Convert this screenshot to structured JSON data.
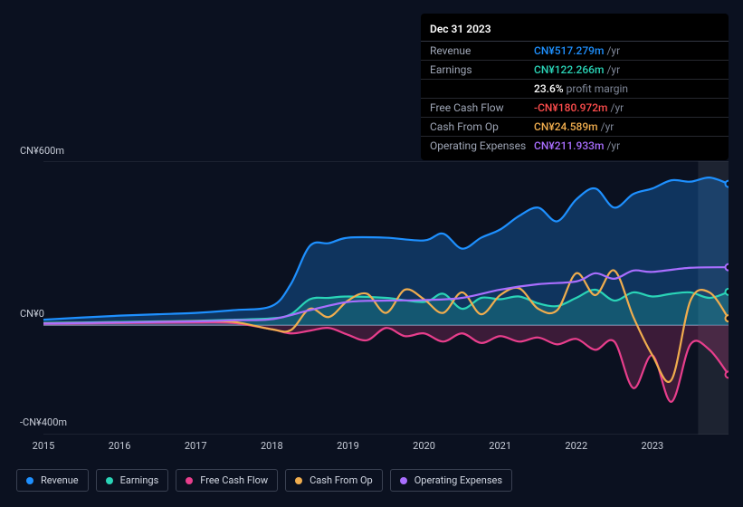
{
  "chart": {
    "type": "line-area",
    "background_color": "#0b1120",
    "grid_color": "#2d3442",
    "zero_line_color": "#6a7184",
    "forecast_band_color": "#3e4554",
    "xlim": [
      2015,
      2024
    ],
    "ylim": [
      -400,
      600
    ],
    "ylabels": [
      {
        "v": 600,
        "text": "CN¥600m"
      },
      {
        "v": 0,
        "text": "CN¥0"
      },
      {
        "v": -400,
        "text": "-CN¥400m"
      }
    ],
    "xticks": [
      2015,
      2016,
      2017,
      2018,
      2019,
      2020,
      2021,
      2022,
      2023
    ],
    "forecast_start": 2023.6,
    "series": [
      {
        "key": "revenue",
        "label": "Revenue",
        "color": "#1e90ff",
        "fill_opacity": 0.28,
        "values": [
          [
            2015,
            20
          ],
          [
            2015.5,
            28
          ],
          [
            2016,
            35
          ],
          [
            2016.5,
            40
          ],
          [
            2017,
            45
          ],
          [
            2017.5,
            55
          ],
          [
            2018,
            70
          ],
          [
            2018.25,
            150
          ],
          [
            2018.5,
            290
          ],
          [
            2018.75,
            300
          ],
          [
            2019,
            320
          ],
          [
            2019.5,
            320
          ],
          [
            2020,
            310
          ],
          [
            2020.25,
            335
          ],
          [
            2020.5,
            280
          ],
          [
            2020.75,
            320
          ],
          [
            2021,
            350
          ],
          [
            2021.25,
            400
          ],
          [
            2021.5,
            430
          ],
          [
            2021.75,
            380
          ],
          [
            2022,
            460
          ],
          [
            2022.25,
            500
          ],
          [
            2022.5,
            430
          ],
          [
            2022.75,
            480
          ],
          [
            2023,
            500
          ],
          [
            2023.25,
            530
          ],
          [
            2023.5,
            525
          ],
          [
            2023.75,
            540
          ],
          [
            2024,
            517
          ]
        ]
      },
      {
        "key": "earnings",
        "label": "Earnings",
        "color": "#2ad4b7",
        "fill_opacity": 0.22,
        "values": [
          [
            2015,
            8
          ],
          [
            2015.5,
            10
          ],
          [
            2016,
            12
          ],
          [
            2016.5,
            14
          ],
          [
            2017,
            16
          ],
          [
            2017.5,
            20
          ],
          [
            2018,
            25
          ],
          [
            2018.25,
            40
          ],
          [
            2018.5,
            95
          ],
          [
            2018.75,
            100
          ],
          [
            2019,
            105
          ],
          [
            2019.5,
            100
          ],
          [
            2020,
            85
          ],
          [
            2020.25,
            115
          ],
          [
            2020.5,
            60
          ],
          [
            2020.75,
            100
          ],
          [
            2021,
            95
          ],
          [
            2021.25,
            105
          ],
          [
            2021.5,
            80
          ],
          [
            2021.75,
            70
          ],
          [
            2022,
            100
          ],
          [
            2022.25,
            130
          ],
          [
            2022.5,
            90
          ],
          [
            2022.75,
            120
          ],
          [
            2023,
            105
          ],
          [
            2023.25,
            115
          ],
          [
            2023.5,
            120
          ],
          [
            2023.75,
            100
          ],
          [
            2024,
            122
          ]
        ]
      },
      {
        "key": "fcf",
        "label": "Free Cash Flow",
        "color": "#e83e8c",
        "fill_opacity": 0.22,
        "values": [
          [
            2015,
            5
          ],
          [
            2016,
            8
          ],
          [
            2017,
            10
          ],
          [
            2017.5,
            8
          ],
          [
            2018,
            -15
          ],
          [
            2018.25,
            -30
          ],
          [
            2018.5,
            -20
          ],
          [
            2018.75,
            -10
          ],
          [
            2019,
            -35
          ],
          [
            2019.25,
            -55
          ],
          [
            2019.5,
            -10
          ],
          [
            2019.75,
            -40
          ],
          [
            2020,
            -30
          ],
          [
            2020.25,
            -60
          ],
          [
            2020.5,
            -30
          ],
          [
            2020.75,
            -65
          ],
          [
            2021,
            -40
          ],
          [
            2021.25,
            -60
          ],
          [
            2021.5,
            -45
          ],
          [
            2021.75,
            -70
          ],
          [
            2022,
            -50
          ],
          [
            2022.25,
            -90
          ],
          [
            2022.5,
            -60
          ],
          [
            2022.75,
            -230
          ],
          [
            2023,
            -110
          ],
          [
            2023.25,
            -280
          ],
          [
            2023.5,
            -70
          ],
          [
            2023.75,
            -90
          ],
          [
            2024,
            -181
          ]
        ]
      },
      {
        "key": "cfo",
        "label": "Cash From Op",
        "color": "#f0ad4e",
        "fill_opacity": 0.0,
        "values": [
          [
            2015,
            7
          ],
          [
            2016,
            10
          ],
          [
            2017,
            15
          ],
          [
            2017.5,
            12
          ],
          [
            2018,
            -15
          ],
          [
            2018.25,
            -18
          ],
          [
            2018.5,
            60
          ],
          [
            2018.75,
            30
          ],
          [
            2019,
            90
          ],
          [
            2019.25,
            115
          ],
          [
            2019.5,
            45
          ],
          [
            2019.75,
            130
          ],
          [
            2020,
            95
          ],
          [
            2020.25,
            45
          ],
          [
            2020.5,
            120
          ],
          [
            2020.75,
            40
          ],
          [
            2021,
            110
          ],
          [
            2021.25,
            135
          ],
          [
            2021.5,
            60
          ],
          [
            2021.75,
            55
          ],
          [
            2022,
            190
          ],
          [
            2022.25,
            110
          ],
          [
            2022.5,
            200
          ],
          [
            2022.75,
            30
          ],
          [
            2023,
            -110
          ],
          [
            2023.25,
            -200
          ],
          [
            2023.5,
            90
          ],
          [
            2023.75,
            120
          ],
          [
            2024,
            25
          ]
        ]
      },
      {
        "key": "opex",
        "label": "Operating Expenses",
        "color": "#a96eff",
        "fill_opacity": 0.0,
        "values": [
          [
            2015,
            6
          ],
          [
            2016,
            10
          ],
          [
            2017,
            14
          ],
          [
            2017.5,
            18
          ],
          [
            2018,
            22
          ],
          [
            2018.5,
            55
          ],
          [
            2019,
            85
          ],
          [
            2019.5,
            90
          ],
          [
            2020,
            92
          ],
          [
            2020.5,
            100
          ],
          [
            2021,
            130
          ],
          [
            2021.5,
            150
          ],
          [
            2022,
            160
          ],
          [
            2022.25,
            190
          ],
          [
            2022.5,
            170
          ],
          [
            2022.75,
            200
          ],
          [
            2023,
            195
          ],
          [
            2023.5,
            210
          ],
          [
            2024,
            212
          ]
        ]
      }
    ]
  },
  "tooltip": {
    "title": "Dec 31 2023",
    "rows": [
      {
        "label": "Revenue",
        "value": "CN¥517.279m",
        "color": "#1e90ff",
        "unit": "/yr"
      },
      {
        "label": "Earnings",
        "value": "CN¥122.266m",
        "color": "#2ad4b7",
        "unit": "/yr"
      },
      {
        "label": "",
        "value": "23.6%",
        "color": "#ffffff",
        "unit": "profit margin"
      },
      {
        "label": "Free Cash Flow",
        "value": "-CN¥180.972m",
        "color": "#ff4d4d",
        "unit": "/yr"
      },
      {
        "label": "Cash From Op",
        "value": "CN¥24.589m",
        "color": "#f0ad4e",
        "unit": "/yr"
      },
      {
        "label": "Operating Expenses",
        "value": "CN¥211.933m",
        "color": "#a96eff",
        "unit": "/yr"
      }
    ]
  },
  "legend": [
    {
      "label": "Revenue",
      "color": "#1e90ff"
    },
    {
      "label": "Earnings",
      "color": "#2ad4b7"
    },
    {
      "label": "Free Cash Flow",
      "color": "#e83e8c"
    },
    {
      "label": "Cash From Op",
      "color": "#f0ad4e"
    },
    {
      "label": "Operating Expenses",
      "color": "#a96eff"
    }
  ]
}
